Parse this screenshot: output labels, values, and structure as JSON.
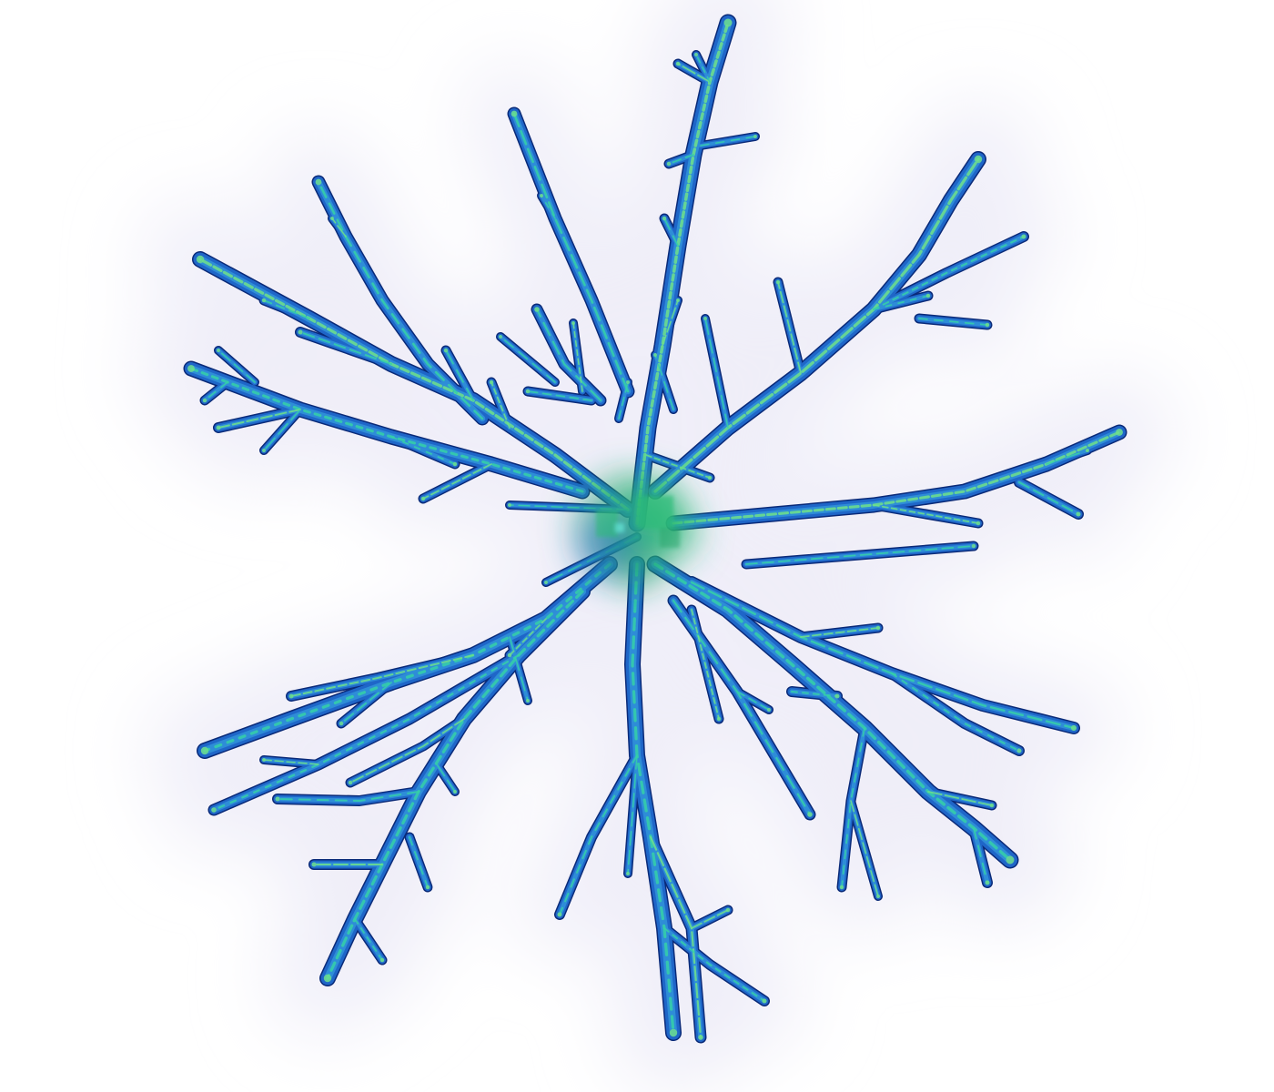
{
  "image": {
    "subject": "neuron",
    "icon": "neuron-icon",
    "colors": {
      "background": "#ffffff",
      "halo": "#efeef8",
      "outline": "#0a2a78",
      "branch_body": "#1f66c8",
      "branch_core": "#2f8fd8",
      "highlight": "#35d0a8",
      "tip": "#6fe08a",
      "soma_glow": "#1fa36a",
      "soma_core": "#2dbb78"
    }
  }
}
